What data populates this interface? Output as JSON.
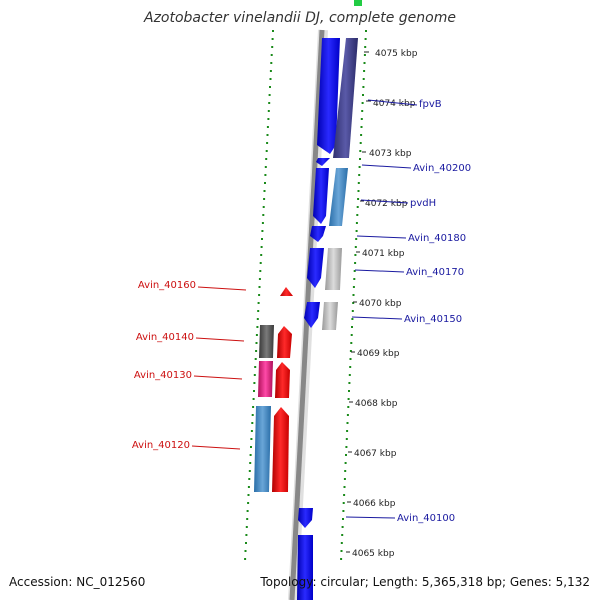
{
  "title": "Azotobacter vinelandii DJ, complete genome",
  "footer": {
    "accession": "Accession: NC_012560",
    "summary": "Topology: circular; Length: 5,365,318 bp; Genes: 5,132"
  },
  "ruler": {
    "ticks": [
      {
        "label": "4075 kbp"
      },
      {
        "label": "4074 kbp"
      },
      {
        "label": "4073 kbp"
      },
      {
        "label": "4072 kbp"
      },
      {
        "label": "4071 kbp"
      },
      {
        "label": "4070 kbp"
      },
      {
        "label": "4069 kbp"
      },
      {
        "label": "4068 kbp"
      },
      {
        "label": "4067 kbp"
      },
      {
        "label": "4066 kbp"
      },
      {
        "label": "4065 kbp"
      }
    ]
  },
  "forward_gene_labels": [
    {
      "name": "fpvB"
    },
    {
      "name": "Avin_40200"
    },
    {
      "name": "pvdH"
    },
    {
      "name": "Avin_40180"
    },
    {
      "name": "Avin_40170"
    },
    {
      "name": "Avin_40150"
    },
    {
      "name": "Avin_40100"
    }
  ],
  "reverse_gene_labels": [
    {
      "name": "Avin_40160"
    },
    {
      "name": "Avin_40140"
    },
    {
      "name": "Avin_40130"
    },
    {
      "name": "Avin_40120"
    }
  ],
  "colors": {
    "forward_strand": "#1010ee",
    "reverse_strand": "#ee1010",
    "forward_label": "#1a1aa0",
    "reverse_label": "#cc1010",
    "ruler_dots": "#1a8a1a",
    "backbone": "#888888"
  }
}
